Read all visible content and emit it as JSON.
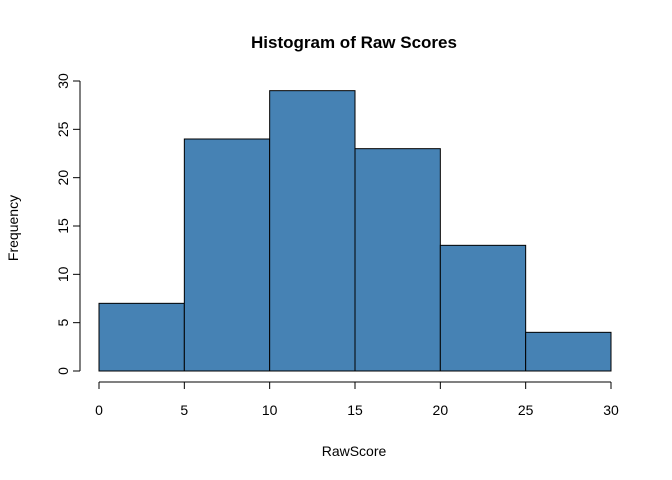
{
  "chart_data": {
    "type": "bar",
    "title": "Histogram of Raw Scores",
    "xlabel": "RawScore",
    "ylabel": "Frequency",
    "bins": [
      {
        "from": 0,
        "to": 5,
        "count": 7
      },
      {
        "from": 5,
        "to": 10,
        "count": 24
      },
      {
        "from": 10,
        "to": 15,
        "count": 29
      },
      {
        "from": 15,
        "to": 20,
        "count": 23
      },
      {
        "from": 20,
        "to": 25,
        "count": 13
      },
      {
        "from": 25,
        "to": 30,
        "count": 4
      }
    ],
    "xlim": [
      0,
      30
    ],
    "ylim": [
      0,
      30
    ],
    "x_ticks": [
      "0",
      "5",
      "10",
      "15",
      "20",
      "25",
      "30"
    ],
    "y_ticks": [
      "0",
      "5",
      "10",
      "15",
      "20",
      "25",
      "30"
    ],
    "bar_color": "#4682B4",
    "grid": false
  }
}
